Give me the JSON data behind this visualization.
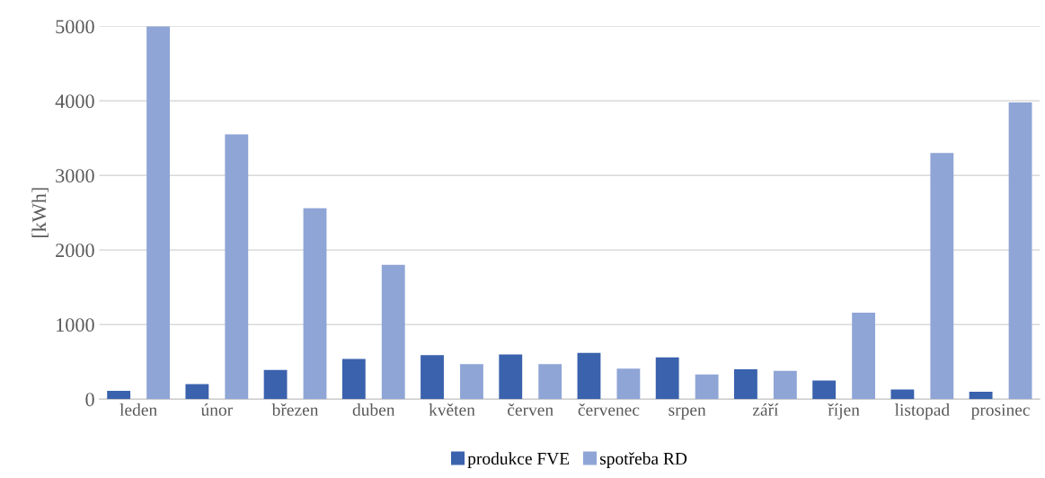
{
  "chart_data": {
    "type": "bar",
    "ylabel": "[kWh]",
    "categories": [
      "leden",
      "únor",
      "březen",
      "duben",
      "květen",
      "červen",
      "červenec",
      "srpen",
      "září",
      "říjen",
      "listopad",
      "prosinec"
    ],
    "series": [
      {
        "name": "produkce FVE",
        "color": "#3a62ad",
        "values": [
          110,
          200,
          390,
          540,
          590,
          600,
          620,
          560,
          400,
          250,
          130,
          100
        ]
      },
      {
        "name": "spotřeba RD",
        "color": "#8fa5d6",
        "values": [
          5000,
          3550,
          2560,
          1800,
          470,
          470,
          410,
          330,
          380,
          1160,
          3300,
          3980
        ]
      }
    ],
    "ylim": [
      0,
      5000
    ],
    "yticks": [
      0,
      1000,
      2000,
      3000,
      4000,
      5000
    ],
    "grid": "y",
    "legend": "bottom"
  }
}
